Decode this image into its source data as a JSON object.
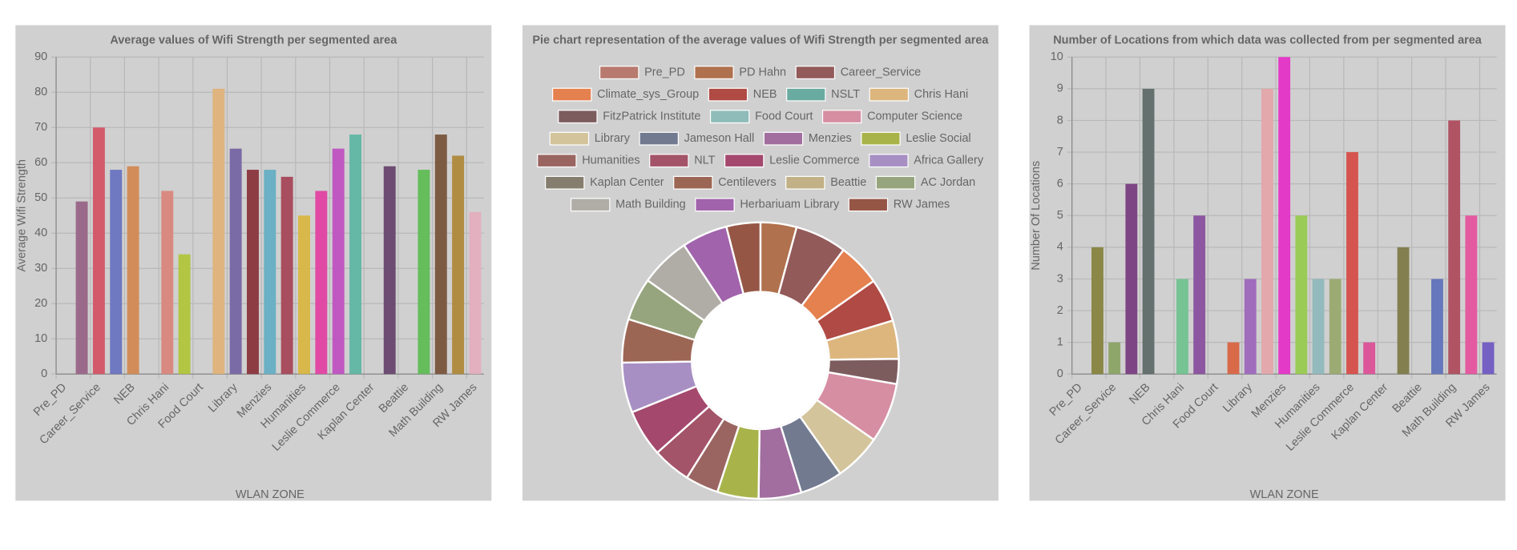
{
  "chart_data": [
    {
      "type": "bar",
      "title": "Average values of Wifi Strength per segmented area",
      "x_label": "WLAN ZONE",
      "y_label": "Average Wifi Strength",
      "categories": [
        "Pre_PD",
        null,
        "Career_Service",
        null,
        "NEB",
        null,
        "Chris Hani",
        null,
        "Food Court",
        null,
        "Library",
        null,
        "Menzies",
        null,
        "Humanities",
        null,
        "Leslie Commerce",
        null,
        "Kaplan Center",
        null,
        "Beattie",
        null,
        "Math Building",
        null,
        "RW James"
      ],
      "values": [
        null,
        49,
        70,
        58,
        59,
        null,
        52,
        34,
        null,
        81,
        64,
        58,
        58,
        56,
        45,
        52,
        64,
        68,
        null,
        59,
        null,
        58,
        68,
        62,
        46
      ],
      "colors": [
        null,
        "#9b6a8a",
        "#d35a6b",
        "#6f79c1",
        "#d18c5a",
        null,
        "#d98a80",
        "#b2c643",
        null,
        "#e0b47e",
        "#7a6aa6",
        "#8e3c44",
        "#6bb0c4",
        "#a84e5e",
        "#d8b84a",
        "#e04aa5",
        "#c058c2",
        "#65b7a6",
        null,
        "#6d4c73",
        null,
        "#65bd5b",
        "#7d5b43",
        "#b08c42",
        "#e2b0be"
      ],
      "ylim": [
        0,
        90
      ],
      "yticks": [
        0,
        10,
        20,
        30,
        40,
        50,
        60,
        70,
        80,
        90
      ],
      "grid": true
    },
    {
      "type": "pie",
      "title": "Pie chart representation of the average values of Wifi Strength per segmented area",
      "categories": [
        "Pre_PD",
        "PD Hahn",
        "Career_Service",
        "Climate_sys_Group",
        "NEB",
        "NSLT",
        "Chris Hani",
        "FitzPatrick Institute",
        "Food Court",
        "Computer Science",
        "Library",
        "Jameson Hall",
        "Menzies",
        "Leslie Social",
        "Humanities",
        "NLT",
        "Leslie Commerce",
        "Africa Gallery",
        "Kaplan Center",
        "Centilevers",
        "Beattie",
        "AC Jordan",
        "Math Building",
        "Herbariuam Library",
        "RW James"
      ],
      "values": [
        null,
        49,
        70,
        58,
        59,
        null,
        52,
        34,
        null,
        81,
        64,
        58,
        58,
        56,
        45,
        52,
        64,
        68,
        null,
        59,
        null,
        58,
        68,
        62,
        46
      ],
      "colors": [
        "#b87a6e",
        "#b0714e",
        "#935a5a",
        "#e5814f",
        "#b04a44",
        "#6aaba1",
        "#ddb67e",
        "#7d5c5e",
        "#8fbcb8",
        "#d68ea3",
        "#d4c49c",
        "#717a8f",
        "#a16e9f",
        "#a8b44a",
        "#9a6561",
        "#a35468",
        "#a4486e",
        "#a78fc4",
        "#857d6d",
        "#9c6654",
        "#c2b187",
        "#96a57d",
        "#b0aca6",
        "#a163ac",
        "#965646"
      ],
      "legend": "top",
      "donut": true
    },
    {
      "type": "bar",
      "title": "Number of Locations from which data was collected from per segmented area",
      "x_label": "WLAN ZONE",
      "y_label": "Number Of Locations",
      "categories": [
        "Pre_PD",
        null,
        "Career_Service",
        null,
        "NEB",
        null,
        "Chris Hani",
        null,
        "Food Court",
        null,
        "Library",
        null,
        "Menzies",
        null,
        "Humanities",
        null,
        "Leslie Commerce",
        null,
        "Kaplan Center",
        null,
        "Beattie",
        null,
        "Math Building",
        null,
        "RW James"
      ],
      "values": [
        null,
        4,
        1,
        6,
        9,
        null,
        3,
        5,
        null,
        1,
        3,
        9,
        10,
        5,
        3,
        3,
        7,
        1,
        null,
        4,
        null,
        3,
        8,
        5,
        1
      ],
      "colors": [
        null,
        "#8a8747",
        "#8fa66a",
        "#7e4585",
        "#64716e",
        null,
        "#76c394",
        "#8c56a0",
        null,
        "#d86a4a",
        "#a06cbc",
        "#e2a8ac",
        "#e43ac8",
        "#9acb57",
        "#93babc",
        "#9cab74",
        "#d6544f",
        "#db579a",
        null,
        "#847f4f",
        null,
        "#6677bb",
        "#b05464",
        "#e45aa1",
        "#7560c4"
      ],
      "ylim": [
        0,
        10
      ],
      "yticks": [
        0,
        1,
        2,
        3,
        4,
        5,
        6,
        7,
        8,
        9,
        10
      ],
      "grid": true
    }
  ]
}
